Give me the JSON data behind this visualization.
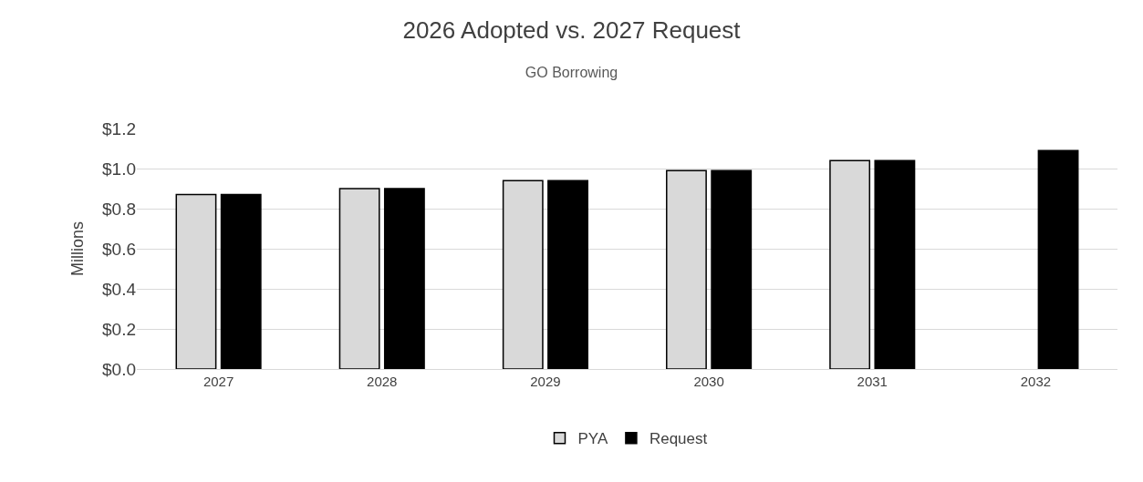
{
  "chart_data": {
    "type": "bar",
    "title": "2026 Adopted vs. 2027 Request",
    "subtitle": "GO Borrowing",
    "ylabel": "Millions",
    "categories": [
      "2027",
      "2028",
      "2029",
      "2030",
      "2031",
      "2032"
    ],
    "series": [
      {
        "name": "PYA",
        "color": "#d9d9d9",
        "values": [
          0.87,
          0.9,
          0.94,
          0.99,
          1.04,
          null
        ]
      },
      {
        "name": "Request",
        "color": "#000000",
        "values": [
          0.87,
          0.9,
          0.94,
          0.99,
          1.04,
          1.09
        ]
      }
    ],
    "ylim": [
      0,
      1.2
    ],
    "yticks": [
      {
        "value": 0,
        "label": "$0.0"
      },
      {
        "value": 0.2,
        "label": "$0.2"
      },
      {
        "value": 0.4,
        "label": "$0.4"
      },
      {
        "value": 0.6,
        "label": "$0.6"
      },
      {
        "value": 0.8,
        "label": "$0.8"
      },
      {
        "value": 1.0,
        "label": "$1.0"
      },
      {
        "value": 1.2,
        "label": "$1.2"
      }
    ],
    "grid": "y",
    "legend": "bottom"
  }
}
